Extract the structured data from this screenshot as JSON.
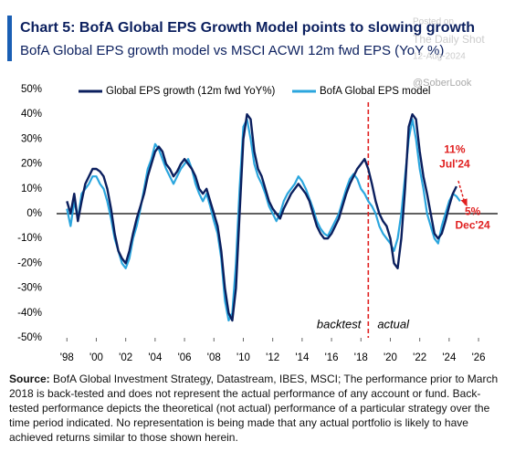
{
  "chart_data": {
    "type": "line",
    "title": "Chart 5: BofA Global EPS Growth Model points to slowing growth",
    "subtitle": "BofA Global EPS growth model vs MSCI ACWI 12m fwd EPS (YoY %)",
    "watermark": [
      "Posted on",
      "The Daily Shot",
      "12-Aug-2024",
      "@SoberLook"
    ],
    "x": [
      1998,
      1998.25,
      1998.5,
      1998.75,
      1999,
      1999.25,
      1999.5,
      1999.75,
      2000,
      2000.25,
      2000.5,
      2000.75,
      2001,
      2001.25,
      2001.5,
      2001.75,
      2002,
      2002.25,
      2002.5,
      2002.75,
      2003,
      2003.25,
      2003.5,
      2003.75,
      2004,
      2004.25,
      2004.5,
      2004.75,
      2005,
      2005.25,
      2005.5,
      2005.75,
      2006,
      2006.25,
      2006.5,
      2006.75,
      2007,
      2007.25,
      2007.5,
      2007.75,
      2008,
      2008.25,
      2008.5,
      2008.75,
      2009,
      2009.25,
      2009.5,
      2009.75,
      2010,
      2010.25,
      2010.5,
      2010.75,
      2011,
      2011.25,
      2011.5,
      2011.75,
      2012,
      2012.25,
      2012.5,
      2012.75,
      2013,
      2013.25,
      2013.5,
      2013.75,
      2014,
      2014.25,
      2014.5,
      2014.75,
      2015,
      2015.25,
      2015.5,
      2015.75,
      2016,
      2016.25,
      2016.5,
      2016.75,
      2017,
      2017.25,
      2017.5,
      2017.75,
      2018,
      2018.25,
      2018.5,
      2018.75,
      2019,
      2019.25,
      2019.5,
      2019.75,
      2020,
      2020.25,
      2020.5,
      2020.75,
      2021,
      2021.25,
      2021.5,
      2021.75,
      2022,
      2022.25,
      2022.5,
      2022.75,
      2023,
      2023.25,
      2023.5,
      2023.75,
      2024,
      2024.25,
      2024.5,
      2024.75
    ],
    "series": [
      {
        "name": "Global EPS growth (12m fwd YoY%)",
        "color": "#0b1f5e",
        "values": [
          5,
          0,
          8,
          -3,
          5,
          12,
          15,
          18,
          18,
          17,
          15,
          10,
          2,
          -8,
          -15,
          -18,
          -20,
          -15,
          -8,
          -2,
          3,
          8,
          15,
          20,
          25,
          27,
          25,
          20,
          18,
          15,
          17,
          20,
          22,
          20,
          18,
          15,
          10,
          8,
          10,
          5,
          0,
          -5,
          -15,
          -30,
          -40,
          -43,
          -30,
          0,
          30,
          40,
          38,
          25,
          18,
          15,
          10,
          5,
          2,
          0,
          -2,
          2,
          5,
          8,
          10,
          12,
          10,
          8,
          5,
          0,
          -5,
          -8,
          -10,
          -10,
          -8,
          -5,
          -2,
          3,
          8,
          12,
          15,
          18,
          20,
          22,
          18,
          12,
          5,
          0,
          -3,
          -5,
          -10,
          -20,
          -22,
          -10,
          10,
          35,
          40,
          38,
          25,
          15,
          8,
          0,
          -8,
          -10,
          -8,
          -3,
          3,
          8,
          11,
          null
        ]
      },
      {
        "name": "BofA Global EPS model",
        "color": "#2ba6de",
        "values": [
          2,
          -5,
          5,
          -2,
          8,
          10,
          12,
          15,
          15,
          12,
          10,
          5,
          -2,
          -10,
          -15,
          -20,
          -22,
          -18,
          -10,
          -5,
          2,
          10,
          18,
          22,
          28,
          26,
          22,
          18,
          15,
          12,
          15,
          18,
          20,
          22,
          18,
          12,
          8,
          5,
          8,
          3,
          -3,
          -8,
          -18,
          -35,
          -43,
          -40,
          -20,
          10,
          35,
          38,
          30,
          20,
          15,
          12,
          8,
          3,
          0,
          -3,
          0,
          5,
          8,
          10,
          12,
          15,
          13,
          10,
          6,
          2,
          -3,
          -6,
          -8,
          -9,
          -6,
          -3,
          0,
          5,
          10,
          14,
          16,
          14,
          10,
          8,
          5,
          3,
          0,
          -5,
          -8,
          -10,
          -12,
          -15,
          -10,
          0,
          15,
          30,
          38,
          30,
          18,
          10,
          0,
          -5,
          -10,
          -12,
          -5,
          0,
          5,
          8,
          7,
          5
        ]
      }
    ],
    "xlim": [
      1997.3,
      2027.3
    ],
    "ylim": [
      -50,
      50
    ],
    "xticks": [
      {
        "value": 1998,
        "label": "'98"
      },
      {
        "value": 2000,
        "label": "'00"
      },
      {
        "value": 2002,
        "label": "'02"
      },
      {
        "value": 2004,
        "label": "'04"
      },
      {
        "value": 2006,
        "label": "'06"
      },
      {
        "value": 2008,
        "label": "'08"
      },
      {
        "value": 2010,
        "label": "'10"
      },
      {
        "value": 2012,
        "label": "'12"
      },
      {
        "value": 2014,
        "label": "'14"
      },
      {
        "value": 2016,
        "label": "'16"
      },
      {
        "value": 2018,
        "label": "'18"
      },
      {
        "value": 2020,
        "label": "'20"
      },
      {
        "value": 2022,
        "label": "'22"
      },
      {
        "value": 2024,
        "label": "'24"
      },
      {
        "value": 2026,
        "label": "'26"
      }
    ],
    "yticks": [
      {
        "value": 50,
        "label": "50%"
      },
      {
        "value": 40,
        "label": "40%"
      },
      {
        "value": 30,
        "label": "30%"
      },
      {
        "value": 20,
        "label": "20%"
      },
      {
        "value": 10,
        "label": "10%"
      },
      {
        "value": 0,
        "label": "0%"
      },
      {
        "value": -10,
        "label": "-10%"
      },
      {
        "value": -20,
        "label": "-20%"
      },
      {
        "value": -30,
        "label": "-30%"
      },
      {
        "value": -40,
        "label": "-40%"
      },
      {
        "value": -50,
        "label": "-50%"
      }
    ],
    "legend": "upper left",
    "divider_x": 2018.5,
    "divider_labels": [
      "backtest",
      "actual"
    ],
    "annotations": [
      {
        "value": 11,
        "label": "11%",
        "date": "Jul'24"
      },
      {
        "value": 5,
        "label": "5%",
        "date": "Dec'24"
      }
    ],
    "source_label": "Source:",
    "source_text": "BofA Global Investment Strategy, Datastream, IBES, MSCI; The performance prior to March 2018 is back-tested and does not represent the actual performance of any account or fund. Back-tested performance depicts the theoretical (not actual) performance of a particular strategy over the time period indicated. No representation is being made that any actual portfolio is likely to have achieved returns similar to those shown herein."
  }
}
